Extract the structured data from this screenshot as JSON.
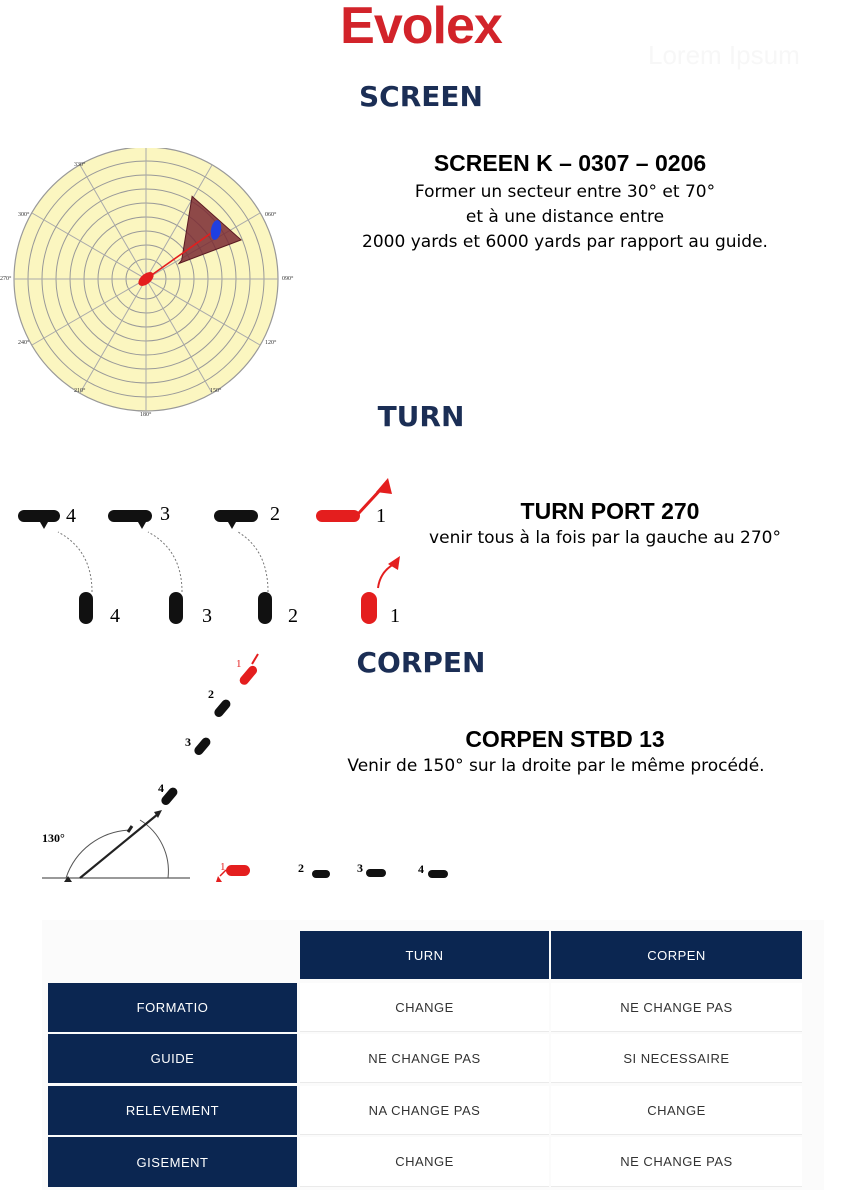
{
  "brand": "Evolex",
  "watermark": "Lorem Ipsum",
  "sections": {
    "screen": {
      "title": "SCREEN",
      "heading": "SCREEN K  – 0307 – 0206",
      "lines": [
        "Former un secteur entre 30°  et 70°",
        "et à une distance entre",
        "2000 yards et 6000 yards par rapport au guide."
      ],
      "radar_labels": [
        "330°",
        "300°",
        "060°",
        "270°",
        "090°",
        "240°",
        "120°",
        "210°",
        "150°",
        "180°"
      ]
    },
    "turn": {
      "title": "TURN",
      "heading": "TURN PORT 270",
      "line": "venir tous à la fois par la gauche au 270°",
      "ship_numbers": [
        "4",
        "3",
        "2",
        "1"
      ]
    },
    "corpen": {
      "title": "CORPEN",
      "heading": "CORPEN STBD 13",
      "line": "Venir de 150°  sur la droite par le même procédé.",
      "angle_label": "130°",
      "ship_numbers": [
        "1",
        "2",
        "3",
        "4"
      ]
    }
  },
  "table": {
    "columns": [
      "TURN",
      "CORPEN"
    ],
    "rows": [
      {
        "label": "FORMATIO",
        "values": [
          "CHANGE",
          "NE CHANGE PAS"
        ]
      },
      {
        "label": "GUIDE",
        "values": [
          "NE CHANGE PAS",
          "SI NECESSAIRE"
        ]
      },
      {
        "label": "RELEVEMENT",
        "values": [
          "NA CHANGE PAS",
          "CHANGE"
        ]
      },
      {
        "label": "GISEMENT",
        "values": [
          "CHANGE",
          "NE CHANGE PAS"
        ]
      }
    ]
  },
  "colors": {
    "brand": "#d2232a",
    "section_title": "#1b2e55",
    "table_header": "#0b2651",
    "radar_fill": "#fbf6c0",
    "sector_fill": "#7a2a33",
    "guide_ship": "#e41e1e",
    "contact_blue": "#1f3fe0"
  }
}
